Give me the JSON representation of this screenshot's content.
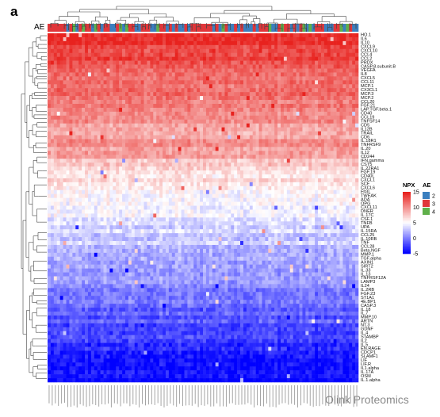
{
  "panel_letter": "a",
  "annotation_label": "AE",
  "watermark": "Olink Proteomics",
  "legends": {
    "npx": {
      "title": "NPX",
      "ticks": [
        15,
        10,
        5,
        0,
        -5
      ],
      "colors": {
        "high": "#e8221e",
        "mid": "#ffffff",
        "low": "#0000ff"
      }
    },
    "ae": {
      "title": "AE",
      "items": [
        {
          "label": "2",
          "color": "#3b7fbf"
        },
        {
          "label": "3",
          "color": "#e0363a"
        },
        {
          "label": "4",
          "color": "#5fb04a"
        }
      ]
    }
  },
  "chart_data": {
    "type": "heatmap",
    "title": "",
    "xlabel": "",
    "ylabel": "",
    "value_range": [
      -5,
      15
    ],
    "visible_row_labels": [
      "HO.1",
      "IL6",
      "IL10",
      "CXCL9",
      "CXCL10",
      "CCL4",
      "CCL2",
      "PRDX",
      "CASP.8.subunit.B",
      "VEGFA",
      "IL8",
      "CXCL5",
      "CCL11",
      "MCP.1",
      "CX3CL1",
      "MCP.3",
      "MCP.2",
      "CCL20",
      "FGF.21",
      "LAP.TGF.beta.1",
      "CD40",
      "CCL19",
      "TNFSF14",
      "CD5",
      "IL12B",
      "TRAIL",
      "CD6",
      "IL.18R1",
      "TNFRSF9",
      "IL.20",
      "IL12",
      "CD244",
      "IFN.gamma",
      "CST5",
      "IL.22RA1",
      "FGF.19",
      "CD40L",
      "CXCL1",
      "SCF",
      "CXCL6",
      "Flt3L",
      "TWEAK",
      "ADA",
      "OPG",
      "CXCL11",
      "DNER",
      "IL.17C",
      "CSF.1",
      "TNFB",
      "UPA",
      "IL.15RA",
      "CCL25",
      "IL.10RB",
      "TNF",
      "CCL28",
      "Beta.NGF",
      "MMP.1",
      "TGF.alpha",
      "AXIN1",
      "SIRT2",
      "IL.33",
      "IL.13",
      "TNFRSF12A",
      "LAMP3",
      "IL24",
      "IL.2RB",
      "FGF.23",
      "ST1A1",
      "4E.BP1",
      "CASP.3",
      "IL.18",
      "IL.7",
      "MMP.10",
      "ARTN",
      "NT.3",
      "GDNF",
      "IL.4",
      "STAMBP",
      "IL2",
      "IL.5",
      "EN.RAGE",
      "CDCP1",
      "SLAMF1",
      "LIF",
      "LIF.R",
      "IL1.alpha",
      "IL.17A",
      "OSM",
      "IL.1.alpha"
    ],
    "n_columns": 100,
    "annotation_track": {
      "name": "AE",
      "levels": [
        "2",
        "3",
        "4"
      ]
    }
  }
}
